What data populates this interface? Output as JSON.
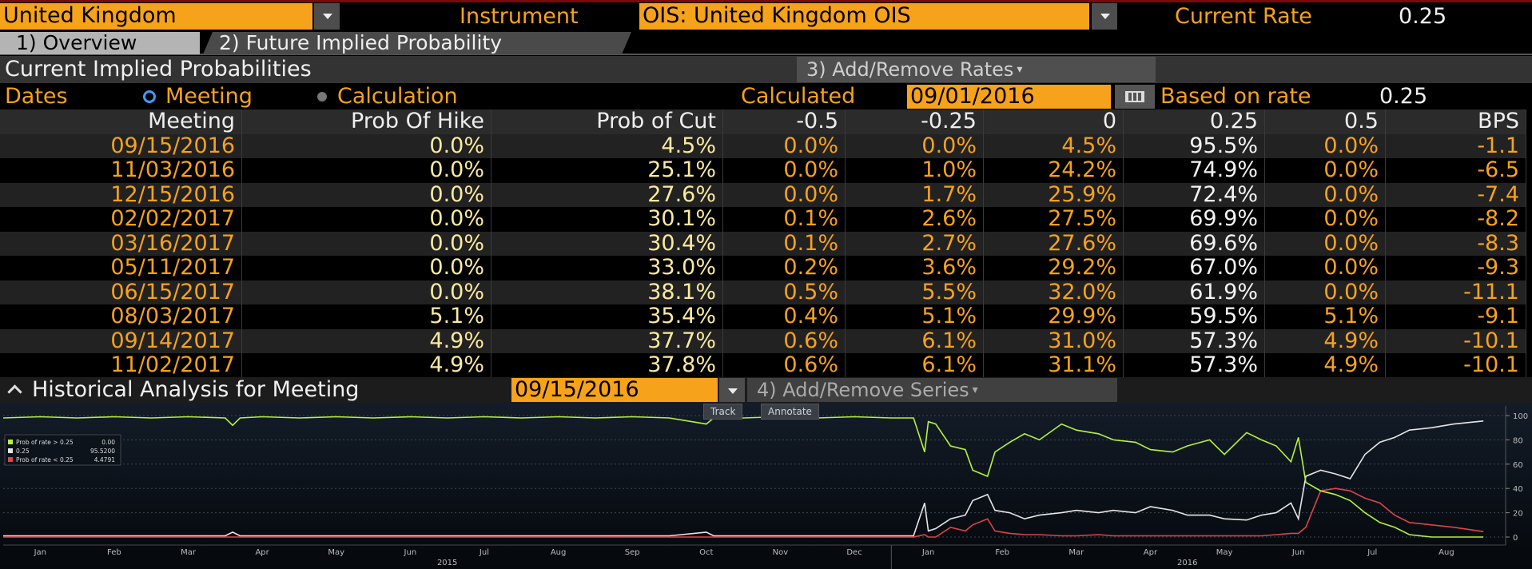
{
  "header": {
    "country": "United Kingdom",
    "instrument_label": "Instrument",
    "instrument": "OIS: United Kingdom OIS",
    "current_rate_label": "Current Rate",
    "current_rate": "0.25"
  },
  "tabs": [
    "1) Overview",
    "2) Future Implied Probability"
  ],
  "panel": {
    "title": "Current Implied Probabilities",
    "add_remove_rates": "3) Add/Remove Rates",
    "dates_label": "Dates",
    "options": [
      "Meeting",
      "Calculation"
    ],
    "calculated_label": "Calculated",
    "calculated_date": "09/01/2016",
    "based_on_rate_label": "Based on rate",
    "based_on_rate": "0.25"
  },
  "table": {
    "columns": [
      "Meeting",
      "Prob Of Hike",
      "Prob of Cut",
      "-0.5",
      "-0.25",
      "0",
      "0.25",
      "0.5",
      "BPS"
    ],
    "rows": [
      [
        "09/15/2016",
        "0.0%",
        "4.5%",
        "0.0%",
        "0.0%",
        "4.5%",
        "95.5%",
        "0.0%",
        "-1.1"
      ],
      [
        "11/03/2016",
        "0.0%",
        "25.1%",
        "0.0%",
        "1.0%",
        "24.2%",
        "74.9%",
        "0.0%",
        "-6.5"
      ],
      [
        "12/15/2016",
        "0.0%",
        "27.6%",
        "0.0%",
        "1.7%",
        "25.9%",
        "72.4%",
        "0.0%",
        "-7.4"
      ],
      [
        "02/02/2017",
        "0.0%",
        "30.1%",
        "0.1%",
        "2.6%",
        "27.5%",
        "69.9%",
        "0.0%",
        "-8.2"
      ],
      [
        "03/16/2017",
        "0.0%",
        "30.4%",
        "0.1%",
        "2.7%",
        "27.6%",
        "69.6%",
        "0.0%",
        "-8.3"
      ],
      [
        "05/11/2017",
        "0.0%",
        "33.0%",
        "0.2%",
        "3.6%",
        "29.2%",
        "67.0%",
        "0.0%",
        "-9.3"
      ],
      [
        "06/15/2017",
        "0.0%",
        "38.1%",
        "0.5%",
        "5.5%",
        "32.0%",
        "61.9%",
        "0.0%",
        "-11.1"
      ],
      [
        "08/03/2017",
        "5.1%",
        "35.4%",
        "0.4%",
        "5.1%",
        "29.9%",
        "59.5%",
        "5.1%",
        "-9.1"
      ],
      [
        "09/14/2017",
        "4.9%",
        "37.7%",
        "0.6%",
        "6.1%",
        "31.0%",
        "57.3%",
        "4.9%",
        "-10.1"
      ],
      [
        "11/02/2017",
        "4.9%",
        "37.8%",
        "0.6%",
        "6.1%",
        "31.1%",
        "57.3%",
        "4.9%",
        "-10.1"
      ]
    ]
  },
  "history": {
    "title": "Historical Analysis for Meeting",
    "meeting": "09/15/2016",
    "add_remove_series": "4) Add/Remove Series",
    "buttons": [
      "Track",
      "Annotate"
    ]
  },
  "chart_data": {
    "type": "line",
    "grid": true,
    "x": [
      0,
      0.5,
      1,
      1.5,
      2,
      2.5,
      3,
      3.1,
      3.2,
      3.5,
      4,
      4.5,
      5,
      5.5,
      6,
      6.5,
      7,
      7.5,
      8,
      8.5,
      9,
      9.5,
      9.6,
      9.7,
      10,
      10.5,
      11,
      11.5,
      12,
      12.3,
      12.45,
      12.5,
      12.6,
      12.8,
      13,
      13.1,
      13.3,
      13.4,
      13.6,
      13.8,
      14,
      14.3,
      14.5,
      14.8,
      15,
      15.3,
      15.5,
      15.8,
      16,
      16.3,
      16.5,
      16.8,
      17,
      17.2,
      17.4,
      17.5,
      17.6,
      17.8,
      18,
      18.2,
      18.4,
      18.6,
      18.8,
      19,
      19.3,
      19.6,
      20
    ],
    "xlim": [
      0,
      20.3
    ],
    "xticks": [
      {
        "value": 0.5,
        "label": "Jan"
      },
      {
        "value": 1.5,
        "label": "Feb"
      },
      {
        "value": 2.5,
        "label": "Mar"
      },
      {
        "value": 3.5,
        "label": "Apr"
      },
      {
        "value": 4.5,
        "label": "May"
      },
      {
        "value": 5.5,
        "label": "Jun"
      },
      {
        "value": 6.5,
        "label": "Jul"
      },
      {
        "value": 7.5,
        "label": "Aug"
      },
      {
        "value": 8.5,
        "label": "Sep"
      },
      {
        "value": 9.5,
        "label": "Oct"
      },
      {
        "value": 10.5,
        "label": "Nov"
      },
      {
        "value": 11.5,
        "label": "Dec"
      },
      {
        "value": 12.5,
        "label": "Jan"
      },
      {
        "value": 13.5,
        "label": "Feb"
      },
      {
        "value": 14.5,
        "label": "Mar"
      },
      {
        "value": 15.5,
        "label": "Apr"
      },
      {
        "value": 16.5,
        "label": "May"
      },
      {
        "value": 17.5,
        "label": "Jun"
      },
      {
        "value": 18.5,
        "label": "Jul"
      },
      {
        "value": 19.5,
        "label": "Aug"
      }
    ],
    "year_labels": [
      {
        "value": 6,
        "label": "2015"
      },
      {
        "value": 16,
        "label": "2016"
      }
    ],
    "year_divider": 12,
    "ylim": [
      0,
      100
    ],
    "yticks": [
      0,
      20,
      40,
      60,
      80,
      100
    ],
    "series": [
      {
        "name": "Prob of rate > 0.25",
        "value_label": "0.00",
        "color": "#b5f23a",
        "values": [
          98,
          99,
          98,
          99,
          98,
          99,
          98,
          92,
          98,
          99,
          98,
          99,
          98,
          99,
          98,
          99,
          98,
          99,
          98,
          99,
          98,
          93,
          98,
          99,
          98,
          99,
          98,
          99,
          98,
          98,
          70,
          95,
          93,
          75,
          72,
          55,
          50,
          70,
          78,
          85,
          80,
          93,
          88,
          85,
          80,
          78,
          72,
          70,
          75,
          80,
          68,
          86,
          80,
          75,
          62,
          82,
          45,
          38,
          35,
          30,
          20,
          12,
          8,
          2,
          0,
          0,
          0
        ]
      },
      {
        "name": "0.25",
        "value_label": "95.5200",
        "color": "#e6e6e6",
        "values": [
          1,
          1,
          1,
          1,
          1,
          1,
          1,
          4,
          1,
          1,
          1,
          1,
          1,
          1,
          1,
          1,
          1,
          1,
          1,
          1,
          1,
          4,
          1,
          1,
          1,
          1,
          1,
          1,
          1,
          1,
          28,
          5,
          7,
          15,
          18,
          30,
          35,
          22,
          20,
          15,
          18,
          20,
          22,
          20,
          22,
          20,
          25,
          22,
          18,
          18,
          15,
          14,
          18,
          20,
          28,
          15,
          50,
          55,
          52,
          48,
          68,
          78,
          82,
          88,
          90,
          93,
          95.5
        ]
      },
      {
        "name": "Prob of rate < 0.25",
        "value_label": "4.4791",
        "color": "#e0424a",
        "values": [
          0,
          0,
          0,
          0,
          0,
          0,
          0,
          0,
          0,
          0,
          0,
          0,
          0,
          0,
          0,
          0,
          0,
          0,
          0,
          0,
          0,
          0,
          0,
          0,
          0,
          0,
          0,
          0,
          0,
          0,
          2,
          0,
          0,
          8,
          5,
          10,
          15,
          5,
          3,
          2,
          2,
          1,
          1,
          2,
          1,
          1,
          1,
          1,
          1,
          1,
          1,
          1,
          1,
          2,
          3,
          3,
          8,
          38,
          40,
          38,
          32,
          28,
          18,
          12,
          10,
          8,
          4.5
        ]
      }
    ]
  }
}
